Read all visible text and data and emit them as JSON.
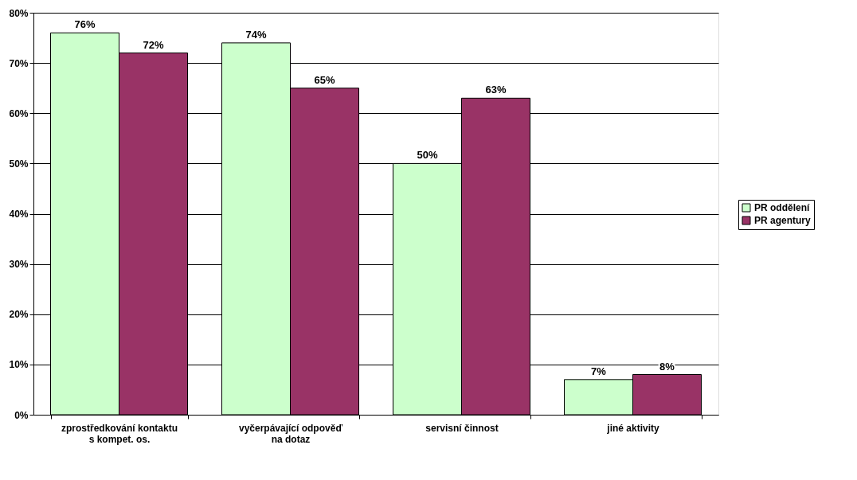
{
  "chart_data": {
    "type": "bar",
    "categories": [
      "zprostředkování kontaktu\ns kompet. os.",
      "vyčerpávající odpověď\nna dotaz",
      "servisní činnost",
      "jiné aktivity"
    ],
    "series": [
      {
        "name": "PR oddělení",
        "color": "#ccffcc",
        "values": [
          76,
          74,
          50,
          7
        ],
        "value_labels": [
          "76%",
          "74%",
          "50%",
          "7%"
        ]
      },
      {
        "name": "PR agentury",
        "color": "#993366",
        "values": [
          72,
          65,
          63,
          8
        ],
        "value_labels": [
          "72%",
          "65%",
          "63%",
          "8%"
        ]
      }
    ],
    "ylim": [
      0,
      80
    ],
    "yticks": [
      {
        "value": 0,
        "label": "0%"
      },
      {
        "value": 10,
        "label": "10%"
      },
      {
        "value": 20,
        "label": "20%"
      },
      {
        "value": 30,
        "label": "30%"
      },
      {
        "value": 40,
        "label": "40%"
      },
      {
        "value": 50,
        "label": "50%"
      },
      {
        "value": 60,
        "label": "60%"
      },
      {
        "value": 70,
        "label": "70%"
      },
      {
        "value": 80,
        "label": "80%"
      }
    ],
    "grid": "y",
    "legend": "right"
  }
}
